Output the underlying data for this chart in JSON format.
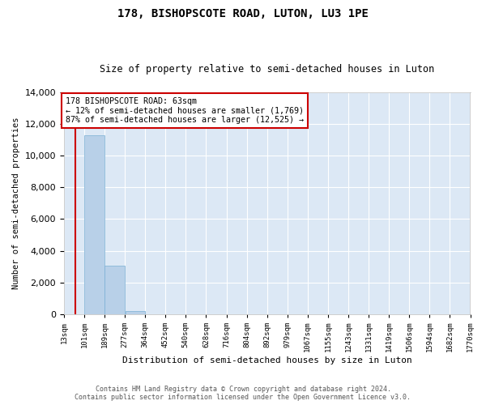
{
  "title": "178, BISHOPSCOTE ROAD, LUTON, LU3 1PE",
  "subtitle": "Size of property relative to semi-detached houses in Luton",
  "xlabel": "Distribution of semi-detached houses by size in Luton",
  "ylabel": "Number of semi-detached properties",
  "bar_color": "#b8d0e8",
  "bar_edge_color": "#7aafd4",
  "background_color": "#dce8f5",
  "grid_color": "#ffffff",
  "bin_labels": [
    "13sqm",
    "101sqm",
    "189sqm",
    "277sqm",
    "364sqm",
    "452sqm",
    "540sqm",
    "628sqm",
    "716sqm",
    "804sqm",
    "892sqm",
    "979sqm",
    "1067sqm",
    "1155sqm",
    "1243sqm",
    "1331sqm",
    "1419sqm",
    "1506sqm",
    "1594sqm",
    "1682sqm",
    "1770sqm"
  ],
  "bar_values": [
    0,
    11300,
    3050,
    200,
    0,
    0,
    0,
    0,
    0,
    0,
    0,
    0,
    0,
    0,
    0,
    0,
    0,
    0,
    0,
    0
  ],
  "bin_starts": [
    13,
    101,
    189,
    277,
    364,
    452,
    540,
    628,
    716,
    804,
    892,
    979,
    1067,
    1155,
    1243,
    1331,
    1419,
    1506,
    1594,
    1682
  ],
  "bin_width": 88,
  "xmin": 13,
  "xmax": 1770,
  "property_size": 63,
  "red_line_color": "#cc0000",
  "annotation_text_line1": "178 BISHOPSCOTE ROAD: 63sqm",
  "annotation_text_line2": "← 12% of semi-detached houses are smaller (1,769)",
  "annotation_text_line3": "87% of semi-detached houses are larger (12,525) →",
  "annotation_box_color": "#cc0000",
  "ylim": [
    0,
    14000
  ],
  "yticks": [
    0,
    2000,
    4000,
    6000,
    8000,
    10000,
    12000,
    14000
  ],
  "tick_positions": [
    13,
    101,
    189,
    277,
    364,
    452,
    540,
    628,
    716,
    804,
    892,
    979,
    1067,
    1155,
    1243,
    1331,
    1419,
    1506,
    1594,
    1682,
    1770
  ],
  "footer_line1": "Contains HM Land Registry data © Crown copyright and database right 2024.",
  "footer_line2": "Contains public sector information licensed under the Open Government Licence v3.0."
}
